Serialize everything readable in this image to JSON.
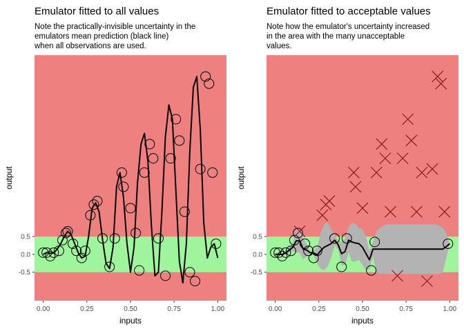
{
  "chart_data": [
    {
      "type": "line",
      "title": "Emulator fitted to all values",
      "subtitle_lines": [
        "Note the practically-invisible uncertainty in the",
        "emulators mean prediction (black line)",
        "when all observations are used."
      ],
      "xlabel": "inputs",
      "ylabel": "output",
      "xlim": [
        -0.05,
        1.05
      ],
      "ylim": [
        -1.3,
        5.6
      ],
      "x_ticks": [
        0.0,
        0.25,
        0.5,
        0.75,
        1.0
      ],
      "x_tick_labels": [
        "0.00",
        "0.25",
        "0.50",
        "0.75",
        "1.00"
      ],
      "y_ticks": [
        0.5,
        0.0,
        -0.5
      ],
      "y_tick_labels": [
        "0.5",
        "0.0",
        "-0.5"
      ],
      "regions": {
        "acceptable": [
          -0.5,
          0.5
        ],
        "acceptable_color": "#9ef59b",
        "unacceptable_color": "#ef8080"
      },
      "series": [
        {
          "kind": "emulator_mean",
          "color": "#000000",
          "x": [
            0.0,
            0.02,
            0.04,
            0.06,
            0.08,
            0.1,
            0.12,
            0.14,
            0.16,
            0.18,
            0.2,
            0.22,
            0.24,
            0.26,
            0.28,
            0.3,
            0.32,
            0.34,
            0.36,
            0.38,
            0.4,
            0.42,
            0.44,
            0.46,
            0.48,
            0.5,
            0.52,
            0.54,
            0.56,
            0.58,
            0.6,
            0.62,
            0.64,
            0.66,
            0.68,
            0.7,
            0.72,
            0.74,
            0.76,
            0.78,
            0.8,
            0.82,
            0.84,
            0.86,
            0.88,
            0.9,
            0.92,
            0.94,
            0.96,
            0.98,
            1.0
          ],
          "y": [
            0.0,
            0.05,
            0.03,
            0.04,
            0.15,
            0.3,
            0.5,
            0.65,
            0.55,
            0.3,
            0.05,
            -0.1,
            -0.05,
            0.5,
            1.3,
            1.45,
            1.2,
            0.4,
            -0.25,
            -0.4,
            0.2,
            1.9,
            2.3,
            1.6,
            0.3,
            -0.5,
            0.2,
            2.0,
            3.1,
            3.4,
            2.6,
            0.8,
            -0.6,
            -0.5,
            1.2,
            3.3,
            4.2,
            3.8,
            1.8,
            -0.2,
            -0.8,
            0.3,
            2.9,
            4.7,
            5.0,
            3.5,
            0.9,
            -0.1,
            0.2,
            0.3,
            -0.1
          ]
        },
        {
          "kind": "observations",
          "marker": "circle",
          "color": "#000000",
          "x": [
            0.0,
            0.02,
            0.04,
            0.06,
            0.09,
            0.11,
            0.13,
            0.14,
            0.17,
            0.19,
            0.22,
            0.24,
            0.27,
            0.29,
            0.31,
            0.34,
            0.38,
            0.41,
            0.45,
            0.46,
            0.5,
            0.53,
            0.55,
            0.58,
            0.61,
            0.63,
            0.66,
            0.7,
            0.73,
            0.76,
            0.78,
            0.81,
            0.84,
            0.87,
            0.9,
            0.93,
            0.95,
            0.97,
            0.99
          ],
          "y": [
            0.05,
            0.05,
            -0.05,
            0.05,
            0.1,
            0.4,
            0.6,
            0.65,
            0.3,
            0.1,
            -0.1,
            0.1,
            1.1,
            1.4,
            1.5,
            0.45,
            -0.35,
            0.45,
            2.3,
            1.9,
            1.3,
            0.6,
            -0.45,
            2.3,
            3.1,
            2.7,
            0.45,
            -0.6,
            2.7,
            3.8,
            3.2,
            1.2,
            -0.5,
            -0.75,
            2.4,
            5.0,
            4.8,
            2.3,
            0.3
          ]
        }
      ]
    },
    {
      "type": "line",
      "title": "Emulator fitted to acceptable values",
      "subtitle_lines": [
        "Note how the emulator's uncertainty increased",
        "in the area with the many unacceptable",
        "values."
      ],
      "xlabel": "inputs",
      "ylabel": "output",
      "xlim": [
        -0.05,
        1.05
      ],
      "ylim": [
        -1.3,
        5.6
      ],
      "x_ticks": [
        0.0,
        0.25,
        0.5,
        0.75,
        1.0
      ],
      "x_tick_labels": [
        "0.00",
        "0.25",
        "0.50",
        "0.75",
        "1.00"
      ],
      "y_ticks": [
        0.5,
        0.0,
        -0.5
      ],
      "y_tick_labels": [
        "0.5",
        "0.0",
        "-0.5"
      ],
      "regions": {
        "acceptable": [
          -0.5,
          0.5
        ],
        "acceptable_color": "#9ef59b",
        "unacceptable_color": "#ef8080"
      },
      "series": [
        {
          "kind": "uncertainty_band",
          "color": "#b3b3b3",
          "x": [
            0.0,
            0.02,
            0.04,
            0.06,
            0.08,
            0.1,
            0.12,
            0.14,
            0.16,
            0.18,
            0.2,
            0.22,
            0.24,
            0.26,
            0.28,
            0.3,
            0.32,
            0.34,
            0.36,
            0.38,
            0.4,
            0.42,
            0.44,
            0.46,
            0.48,
            0.5,
            0.52,
            0.54,
            0.56,
            0.58,
            0.6,
            0.62,
            0.64,
            0.66,
            0.68,
            0.7,
            0.72,
            0.74,
            0.76,
            0.78,
            0.8,
            0.82,
            0.84,
            0.86,
            0.88,
            0.9,
            0.92,
            0.94,
            0.96,
            0.98,
            1.0
          ],
          "lower": [
            -0.05,
            -0.02,
            -0.02,
            0.0,
            0.05,
            0.1,
            0.05,
            0.05,
            -0.15,
            -0.05,
            0.05,
            -0.02,
            -0.25,
            -0.4,
            -0.45,
            -0.35,
            -0.1,
            0.25,
            0.15,
            -0.3,
            -0.3,
            0.05,
            -0.2,
            -0.2,
            -0.15,
            -0.3,
            -0.45,
            -0.4,
            -0.05,
            -0.5,
            -0.55,
            -0.55,
            -0.55,
            -0.55,
            -0.55,
            -0.55,
            -0.55,
            -0.55,
            -0.55,
            -0.55,
            -0.55,
            -0.55,
            -0.55,
            -0.55,
            -0.55,
            -0.55,
            -0.55,
            -0.55,
            -0.5,
            -0.1,
            0.3
          ],
          "upper": [
            0.05,
            0.02,
            0.02,
            0.08,
            0.2,
            0.3,
            0.7,
            0.7,
            0.45,
            0.3,
            0.05,
            0.1,
            0.2,
            0.6,
            0.85,
            0.9,
            0.7,
            0.55,
            0.4,
            0.35,
            0.45,
            0.75,
            0.9,
            0.85,
            0.75,
            0.7,
            0.5,
            0.1,
            0.35,
            0.65,
            0.75,
            0.8,
            0.85,
            0.85,
            0.85,
            0.85,
            0.85,
            0.85,
            0.85,
            0.85,
            0.85,
            0.85,
            0.85,
            0.85,
            0.85,
            0.85,
            0.85,
            0.8,
            0.75,
            0.6,
            0.3
          ]
        },
        {
          "kind": "emulator_mean",
          "color": "#000000",
          "x": [
            0.0,
            0.02,
            0.04,
            0.06,
            0.08,
            0.1,
            0.12,
            0.14,
            0.16,
            0.18,
            0.2,
            0.22,
            0.24,
            0.26,
            0.28,
            0.3,
            0.32,
            0.34,
            0.36,
            0.38,
            0.4,
            0.42,
            0.44,
            0.46,
            0.48,
            0.5,
            0.52,
            0.54,
            0.56,
            0.58,
            0.6,
            0.62,
            0.64,
            0.66,
            0.68,
            0.7,
            0.72,
            0.74,
            0.76,
            0.78,
            0.8,
            0.82,
            0.84,
            0.86,
            0.88,
            0.9,
            0.92,
            0.94,
            0.96,
            0.98,
            1.0
          ],
          "y": [
            0.0,
            0.0,
            0.0,
            0.04,
            0.12,
            0.2,
            0.38,
            0.38,
            0.15,
            0.12,
            0.05,
            0.04,
            -0.02,
            0.1,
            0.2,
            0.25,
            0.3,
            0.4,
            0.28,
            0.02,
            0.08,
            0.4,
            0.35,
            0.32,
            0.3,
            0.2,
            0.02,
            -0.15,
            0.15,
            0.15,
            0.15,
            0.15,
            0.15,
            0.15,
            0.15,
            0.15,
            0.15,
            0.15,
            0.15,
            0.15,
            0.15,
            0.15,
            0.15,
            0.15,
            0.15,
            0.15,
            0.15,
            0.15,
            0.15,
            0.22,
            0.3
          ]
        },
        {
          "kind": "acceptable_observations",
          "marker": "circle",
          "color": "#000000",
          "x": [
            0.0,
            0.02,
            0.04,
            0.06,
            0.09,
            0.11,
            0.13,
            0.17,
            0.19,
            0.22,
            0.24,
            0.34,
            0.38,
            0.41,
            0.55,
            0.57,
            0.99
          ],
          "y": [
            0.05,
            0.05,
            -0.05,
            0.05,
            0.1,
            0.4,
            0.6,
            0.3,
            0.1,
            -0.1,
            0.1,
            0.45,
            -0.35,
            0.45,
            -0.45,
            0.35,
            0.3
          ]
        },
        {
          "kind": "unacceptable_observations",
          "marker": "x",
          "color": "#8b1a1a",
          "x": [
            0.14,
            0.29,
            0.31,
            0.27,
            0.45,
            0.46,
            0.5,
            0.58,
            0.61,
            0.63,
            0.66,
            0.7,
            0.73,
            0.76,
            0.78,
            0.81,
            0.84,
            0.87,
            0.9,
            0.93,
            0.95,
            0.97
          ],
          "y": [
            0.65,
            1.4,
            1.5,
            1.1,
            2.3,
            1.9,
            1.3,
            2.3,
            3.1,
            2.7,
            1.2,
            -0.6,
            2.7,
            3.8,
            3.2,
            1.2,
            2.3,
            -0.75,
            2.4,
            5.0,
            4.8,
            1.2
          ]
        }
      ]
    }
  ]
}
